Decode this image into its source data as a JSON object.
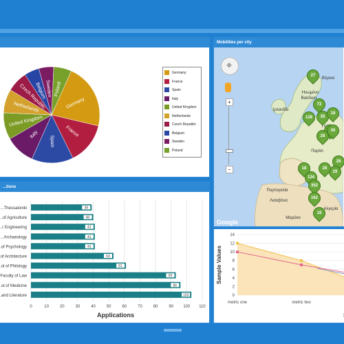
{
  "pie_panel": {
    "legend": [
      {
        "label": "Germany",
        "color": "#d49b12"
      },
      {
        "label": "France",
        "color": "#b21e3f"
      },
      {
        "label": "Spain",
        "color": "#2c49a4"
      },
      {
        "label": "Italy",
        "color": "#6b1a67"
      },
      {
        "label": "United Kingdom",
        "color": "#7c9b25"
      },
      {
        "label": "Netherlands",
        "color": "#d3a12c"
      },
      {
        "label": "Czech Republic",
        "color": "#9c1b47"
      },
      {
        "label": "Belgium",
        "color": "#2844a4"
      },
      {
        "label": "Sweden",
        "color": "#7b1b62"
      },
      {
        "label": "Poland",
        "color": "#77a12a"
      }
    ]
  },
  "pie_data": {
    "type": "pie",
    "slices": [
      {
        "label": "Germany",
        "value": 22
      },
      {
        "label": "France",
        "value": 14
      },
      {
        "label": "Spain",
        "value": 14
      },
      {
        "label": "Italy",
        "value": 10
      },
      {
        "label": "United Kingdom",
        "value": 9
      },
      {
        "label": "Netherlands",
        "value": 8
      },
      {
        "label": "Czech Republic",
        "value": 7
      },
      {
        "label": "Belgium",
        "value": 5
      },
      {
        "label": "Sweden",
        "value": 5
      },
      {
        "label": "Poland",
        "value": 6
      }
    ],
    "slice_text_labels": [
      "Germany",
      "France",
      "Spain",
      "Italy",
      "United Kingdom",
      "Netherlands",
      "Czech Republic",
      "Belgium",
      "Sweden",
      "Poland"
    ]
  },
  "map_panel": {
    "title": "Mobilities per city",
    "zoom_plus": "+",
    "zoom_minus": "−",
    "google": "Google",
    "places": [
      {
        "text": "Ηνωμένο",
        "x": 1.0,
        "y": 0.0
      },
      {
        "text": "Βασίλειο",
        "x": 0.0,
        "y": 0.0
      },
      {
        "text": "Ιρλανδία",
        "x": 0.0,
        "y": 0.0
      },
      {
        "text": "Πορτογαλία",
        "x": 0.0,
        "y": 0.0
      },
      {
        "text": "Μαρόκο",
        "x": 0.0,
        "y": 0.0
      },
      {
        "text": "Γαλλ",
        "x": 0.0,
        "y": 0.0
      },
      {
        "text": "Παρίσι",
        "x": 0.0,
        "y": 0.0
      },
      {
        "text": "Λισαβόνα",
        "x": 0.0,
        "y": 0.0
      },
      {
        "text": "Αλγερία",
        "x": 0.0,
        "y": 0.0
      },
      {
        "text": "Βόρεια",
        "x": 0.0,
        "y": 0.0
      }
    ],
    "markers": [
      "27",
      "72",
      "128",
      "35",
      "20",
      "28",
      "28",
      "134",
      "352",
      "162",
      "29",
      "30",
      "18",
      "28",
      "18",
      "18"
    ]
  },
  "bar_panel": {
    "title": "...tions",
    "xlabel": "Applications"
  },
  "bar_data": {
    "type": "bar",
    "orientation": "horizontal",
    "categories": [
      "...Thessaloniki",
      "...of Agriculture",
      "...r Engineering",
      "...Archaeology",
      "...of Psychology",
      "...of Architecture",
      "...ol of Philology",
      "...Faculty of Law",
      "...ol of Medicine",
      "...and Literature"
    ],
    "values": [
      39,
      40,
      41,
      41,
      41,
      53,
      61,
      93,
      96,
      103
    ],
    "xlim": [
      0,
      110
    ],
    "ticks": [
      0,
      10,
      20,
      30,
      40,
      50,
      60,
      70,
      80,
      90,
      100,
      110
    ],
    "xlabel": "Applications",
    "bar_color": "#1a7f86"
  },
  "line_panel": {
    "ylabel": "Sample Values",
    "corner_text": "S"
  },
  "line_data": {
    "type": "line",
    "categories": [
      "metric one",
      "metric two"
    ],
    "series": [
      {
        "values": [
          12,
          8
        ],
        "color": "#f0c24c",
        "fill": "#fbe4b9"
      },
      {
        "values": [
          10,
          7
        ],
        "color": "#e26a8f"
      }
    ],
    "ylim": [
      0,
      14
    ],
    "yticks": [
      0,
      2,
      4,
      6,
      8,
      10,
      12,
      14
    ]
  }
}
